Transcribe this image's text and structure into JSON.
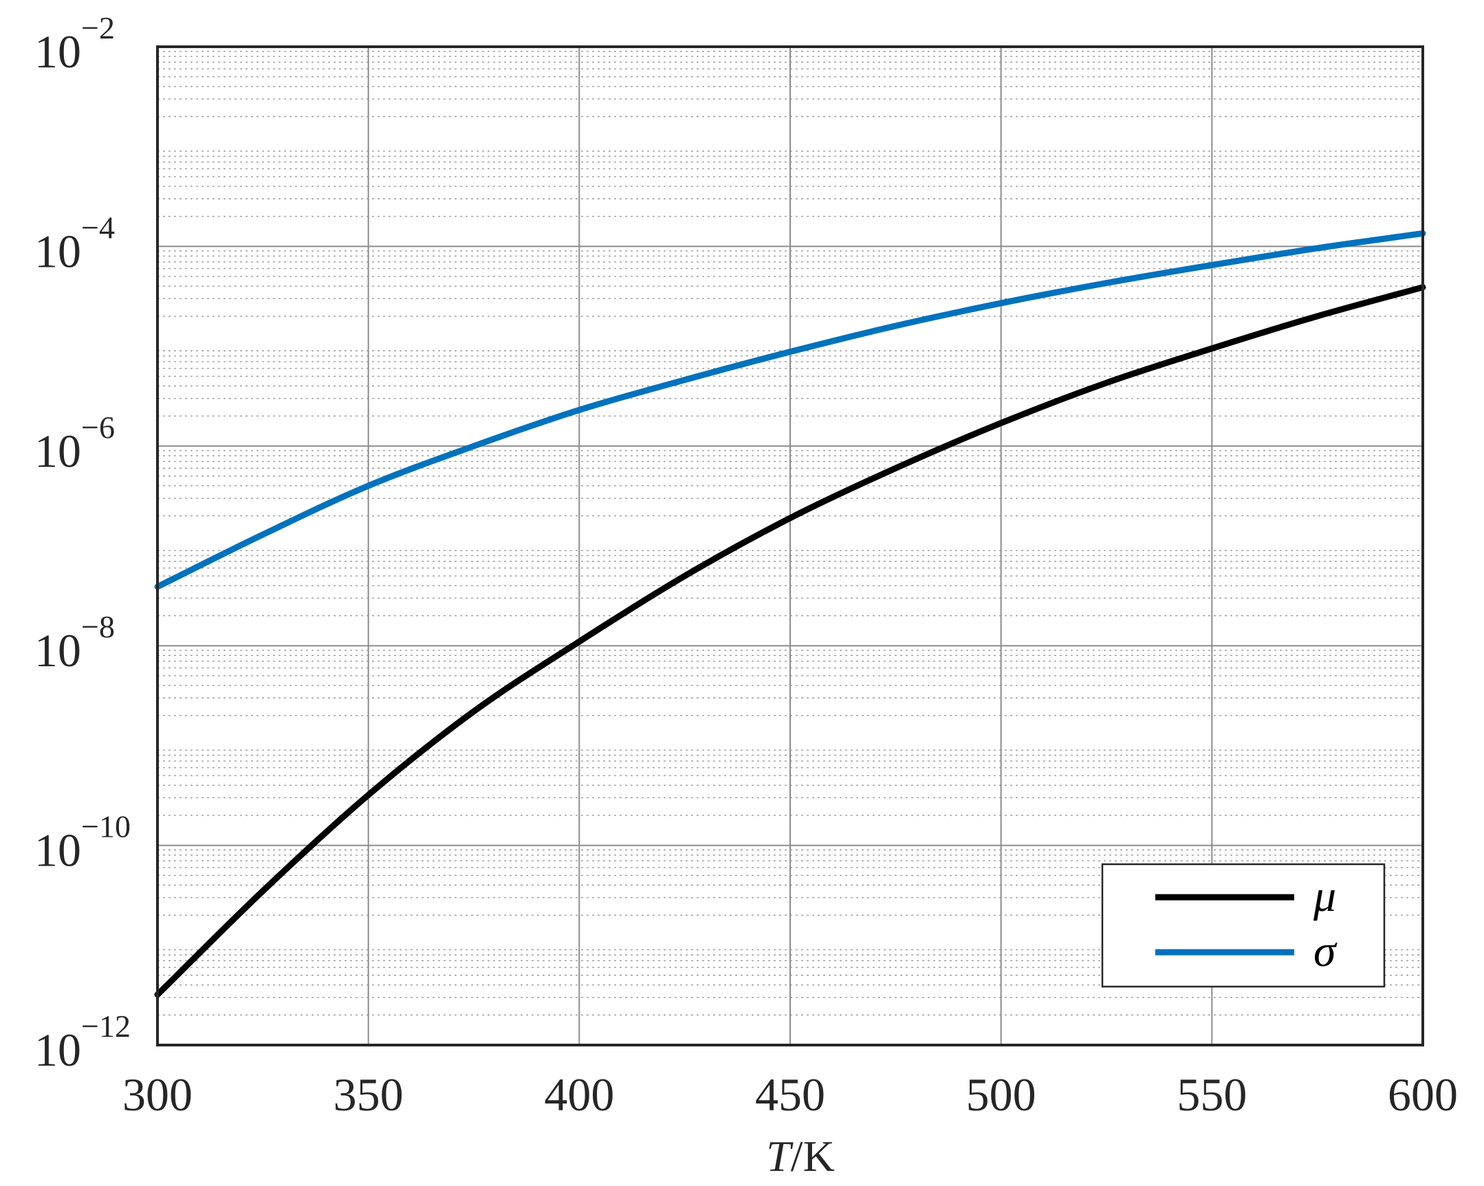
{
  "chart_data": {
    "type": "line",
    "title": "",
    "xlabel_var": "T",
    "xlabel_unit": "/K",
    "ylabel": "",
    "xlim": [
      300,
      600
    ],
    "ylim": [
      1e-12,
      0.01
    ],
    "yscale": "log",
    "grid": true,
    "minor_grid": true,
    "legend_position": "bottom-right",
    "x_ticks": [
      "300",
      "350",
      "400",
      "450",
      "500",
      "550",
      "600"
    ],
    "y_ticks": [
      {
        "base": "10",
        "exp": "−12",
        "value": 1e-12
      },
      {
        "base": "10",
        "exp": "−10",
        "value": 1e-10
      },
      {
        "base": "10",
        "exp": "−8",
        "value": 1e-08
      },
      {
        "base": "10",
        "exp": "−6",
        "value": 1e-06
      },
      {
        "base": "10",
        "exp": "−4",
        "value": 0.0001
      },
      {
        "base": "10",
        "exp": "−2",
        "value": 0.01
      }
    ],
    "x": [
      300,
      325,
      350,
      375,
      400,
      425,
      450,
      475,
      500,
      525,
      550,
      575,
      600
    ],
    "series": [
      {
        "name": "μ",
        "color": "#000000",
        "values": [
          3.2e-12,
          3.5e-11,
          3.2e-10,
          2.2e-09,
          1.1e-08,
          5e-08,
          1.9e-07,
          6e-07,
          1.7e-06,
          4.3e-06,
          9.5e-06,
          2e-05,
          3.9e-05
        ]
      },
      {
        "name": "σ",
        "color": "#0072bd",
        "values": [
          3.9e-08,
          1.3e-07,
          4e-07,
          1e-06,
          2.3e-06,
          4.6e-06,
          8.8e-06,
          1.6e-05,
          2.7e-05,
          4.3e-05,
          6.5e-05,
          9.6e-05,
          0.000135
        ]
      }
    ]
  }
}
